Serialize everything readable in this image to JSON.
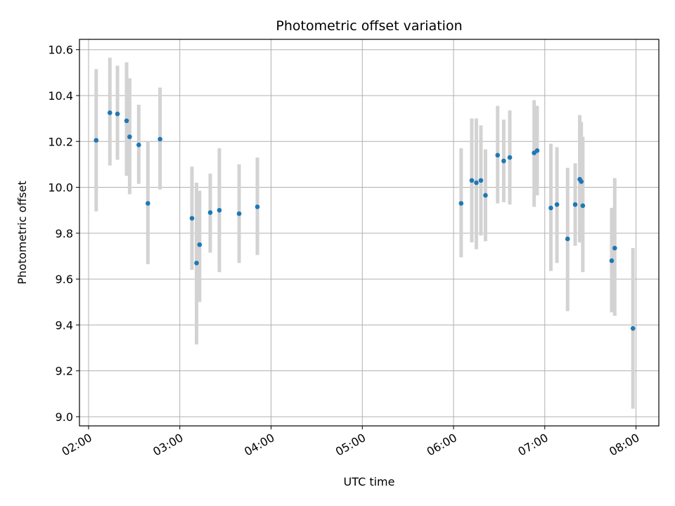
{
  "chart_data": {
    "type": "scatter",
    "title": "Photometric offset variation",
    "xlabel": "UTC time",
    "ylabel": "Photometric offset",
    "grid": true,
    "xlim": [
      "01:54",
      "08:15"
    ],
    "ylim": [
      8.96,
      10.645
    ],
    "x_ticks": [
      "02:00",
      "03:00",
      "04:00",
      "05:00",
      "06:00",
      "07:00",
      "08:00"
    ],
    "y_ticks": [
      9.0,
      9.2,
      9.4,
      9.6,
      9.8,
      10.0,
      10.2,
      10.4,
      10.6
    ],
    "y_tick_labels": [
      "9.0",
      "9.2",
      "9.4",
      "9.6",
      "9.8",
      "10.0",
      "10.2",
      "10.4",
      "10.6"
    ],
    "colors": {
      "point": "#1f77b4",
      "errorbar": "#d3d3d3",
      "grid": "#b0b0b0"
    },
    "points": [
      {
        "t": "02:05",
        "y": 10.205,
        "lo": 9.895,
        "hi": 10.515
      },
      {
        "t": "02:14",
        "y": 10.325,
        "lo": 10.095,
        "hi": 10.565
      },
      {
        "t": "02:19",
        "y": 10.32,
        "lo": 10.12,
        "hi": 10.53
      },
      {
        "t": "02:25",
        "y": 10.29,
        "lo": 10.05,
        "hi": 10.545
      },
      {
        "t": "02:27",
        "y": 10.22,
        "lo": 9.97,
        "hi": 10.475
      },
      {
        "t": "02:33",
        "y": 10.185,
        "lo": 10.015,
        "hi": 10.36
      },
      {
        "t": "02:39",
        "y": 9.93,
        "lo": 9.665,
        "hi": 10.2
      },
      {
        "t": "02:47",
        "y": 10.21,
        "lo": 9.99,
        "hi": 10.435
      },
      {
        "t": "03:08",
        "y": 9.865,
        "lo": 9.64,
        "hi": 10.09
      },
      {
        "t": "03:11",
        "y": 9.67,
        "lo": 9.315,
        "hi": 10.02
      },
      {
        "t": "03:13",
        "y": 9.75,
        "lo": 9.5,
        "hi": 9.985
      },
      {
        "t": "03:20",
        "y": 9.89,
        "lo": 9.715,
        "hi": 10.06
      },
      {
        "t": "03:26",
        "y": 9.9,
        "lo": 9.63,
        "hi": 10.17
      },
      {
        "t": "03:39",
        "y": 9.885,
        "lo": 9.67,
        "hi": 10.1
      },
      {
        "t": "03:51",
        "y": 9.915,
        "lo": 9.705,
        "hi": 10.13
      },
      {
        "t": "06:05",
        "y": 9.93,
        "lo": 9.695,
        "hi": 10.17
      },
      {
        "t": "06:12",
        "y": 10.03,
        "lo": 9.76,
        "hi": 10.3
      },
      {
        "t": "06:15",
        "y": 10.02,
        "lo": 9.73,
        "hi": 10.3
      },
      {
        "t": "06:18",
        "y": 10.03,
        "lo": 9.79,
        "hi": 10.27
      },
      {
        "t": "06:21",
        "y": 9.965,
        "lo": 9.765,
        "hi": 10.165
      },
      {
        "t": "06:29",
        "y": 10.14,
        "lo": 9.93,
        "hi": 10.355
      },
      {
        "t": "06:33",
        "y": 10.115,
        "lo": 9.935,
        "hi": 10.295
      },
      {
        "t": "06:37",
        "y": 10.13,
        "lo": 9.925,
        "hi": 10.335
      },
      {
        "t": "06:53",
        "y": 10.15,
        "lo": 9.915,
        "hi": 10.38
      },
      {
        "t": "06:55",
        "y": 10.16,
        "lo": 9.965,
        "hi": 10.355
      },
      {
        "t": "07:04",
        "y": 9.91,
        "lo": 9.635,
        "hi": 10.19
      },
      {
        "t": "07:08",
        "y": 9.925,
        "lo": 9.67,
        "hi": 10.175
      },
      {
        "t": "07:15",
        "y": 9.775,
        "lo": 9.46,
        "hi": 10.085
      },
      {
        "t": "07:20",
        "y": 9.925,
        "lo": 9.745,
        "hi": 10.105
      },
      {
        "t": "07:23",
        "y": 10.035,
        "lo": 9.76,
        "hi": 10.315
      },
      {
        "t": "07:24",
        "y": 10.025,
        "lo": 9.765,
        "hi": 10.285
      },
      {
        "t": "07:25",
        "y": 9.92,
        "lo": 9.63,
        "hi": 10.22
      },
      {
        "t": "07:44",
        "y": 9.68,
        "lo": 9.455,
        "hi": 9.91
      },
      {
        "t": "07:46",
        "y": 9.735,
        "lo": 9.44,
        "hi": 10.04
      },
      {
        "t": "07:58",
        "y": 9.385,
        "lo": 9.035,
        "hi": 9.735
      }
    ]
  }
}
